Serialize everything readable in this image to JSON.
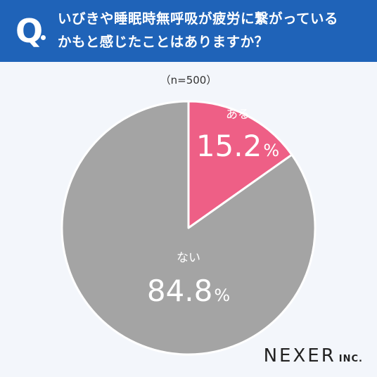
{
  "header": {
    "q_mark": "Q",
    "question_line1": "いびきや睡眠時無呼吸が疲労に繋がっている",
    "question_line2": "かもと感じたことはありますか？"
  },
  "sample_label": "（n=500）",
  "brand": {
    "name": "NEXER",
    "suffix": "INC."
  },
  "colors": {
    "header_bg": "#1f63b8",
    "slice_yes": "#ee5f86",
    "slice_no": "#a4a4a4"
  },
  "chart_data": {
    "type": "pie",
    "slices": [
      {
        "label": "ある",
        "value": 15.2,
        "display": "15.2",
        "color": "#ee5f86"
      },
      {
        "label": "ない",
        "value": 84.8,
        "display": "84.8",
        "color": "#a4a4a4"
      }
    ],
    "unit": "%",
    "start": "12 o'clock",
    "direction": "clockwise"
  }
}
